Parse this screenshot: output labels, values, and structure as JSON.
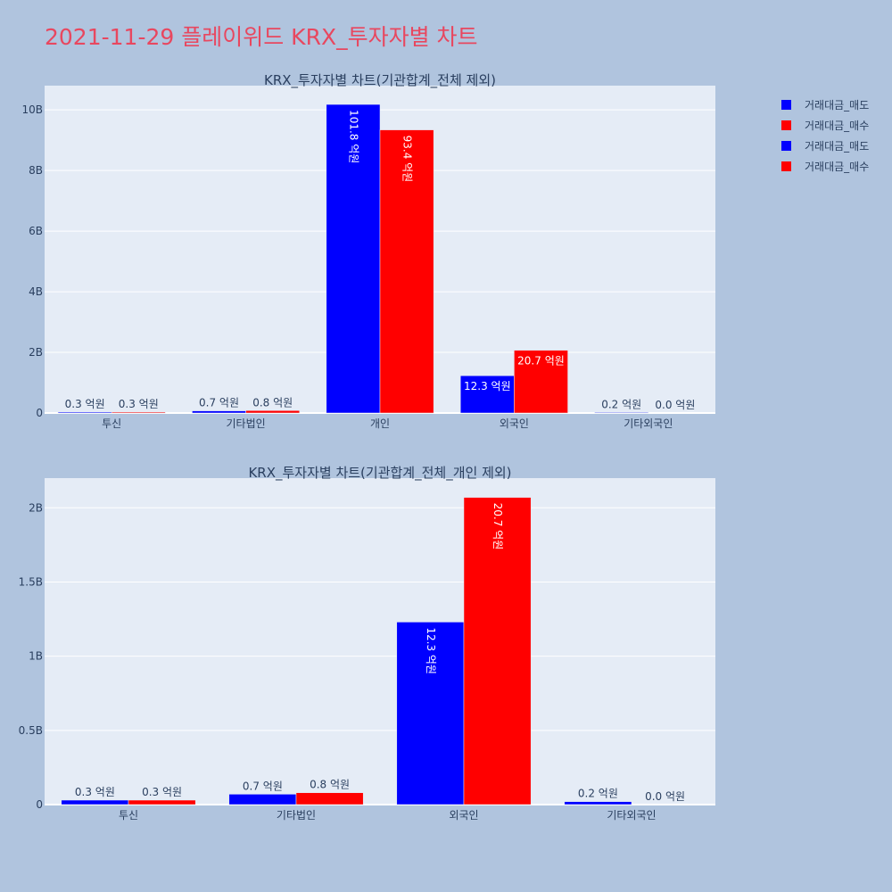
{
  "title": "2021-11-29 플레이위드 KRX_투자자별 차트",
  "colors": {
    "sell": "#0000ff",
    "buy": "#ff0000"
  },
  "legend": [
    {
      "label": "거래대금_매도",
      "color": "#0000ff"
    },
    {
      "label": "거래대금_매수",
      "color": "#ff0000"
    },
    {
      "label": "거래대금_매도",
      "color": "#0000ff"
    },
    {
      "label": "거래대금_매수",
      "color": "#ff0000"
    }
  ],
  "chart_data": [
    {
      "type": "bar",
      "title": "KRX_투자자별 차트(기관합계_전체 제외)",
      "categories": [
        "투신",
        "기타법인",
        "개인",
        "외국인",
        "기타외국인"
      ],
      "series": [
        {
          "name": "거래대금_매도",
          "color": "#0000ff",
          "values": [
            30000000,
            70000000,
            10180000000,
            1230000000,
            20000000
          ],
          "labels": [
            "0.3 억원",
            "0.7 억원",
            "101.8 억원",
            "12.3 억원",
            "0.2 억원"
          ]
        },
        {
          "name": "거래대금_매수",
          "color": "#ff0000",
          "values": [
            30000000,
            80000000,
            9340000000,
            2070000000,
            0
          ],
          "labels": [
            "0.3 억원",
            "0.8 억원",
            "93.4 억원",
            "20.7 억원",
            "0.0 억원"
          ]
        }
      ],
      "ylim": [
        0,
        10800000000
      ],
      "yticks": [
        0,
        2000000000,
        4000000000,
        6000000000,
        8000000000,
        10000000000
      ],
      "ytick_labels": [
        "0",
        "2B",
        "4B",
        "6B",
        "8B",
        "10B"
      ]
    },
    {
      "type": "bar",
      "title": "KRX_투자자별 차트(기관합계_전체_개인 제외)",
      "categories": [
        "투신",
        "기타법인",
        "외국인",
        "기타외국인"
      ],
      "series": [
        {
          "name": "거래대금_매도",
          "color": "#0000ff",
          "values": [
            30000000,
            70000000,
            1230000000,
            20000000
          ],
          "labels": [
            "0.3 억원",
            "0.7 억원",
            "12.3 억원",
            "0.2 억원"
          ]
        },
        {
          "name": "거래대금_매수",
          "color": "#ff0000",
          "values": [
            30000000,
            80000000,
            2070000000,
            0
          ],
          "labels": [
            "0.3 억원",
            "0.8 억원",
            "20.7 억원",
            "0.0 억원"
          ]
        }
      ],
      "ylim": [
        0,
        2200000000
      ],
      "yticks": [
        0,
        500000000,
        1000000000,
        1500000000,
        2000000000
      ],
      "ytick_labels": [
        "0",
        "0.5B",
        "1B",
        "1.5B",
        "2B"
      ]
    }
  ]
}
